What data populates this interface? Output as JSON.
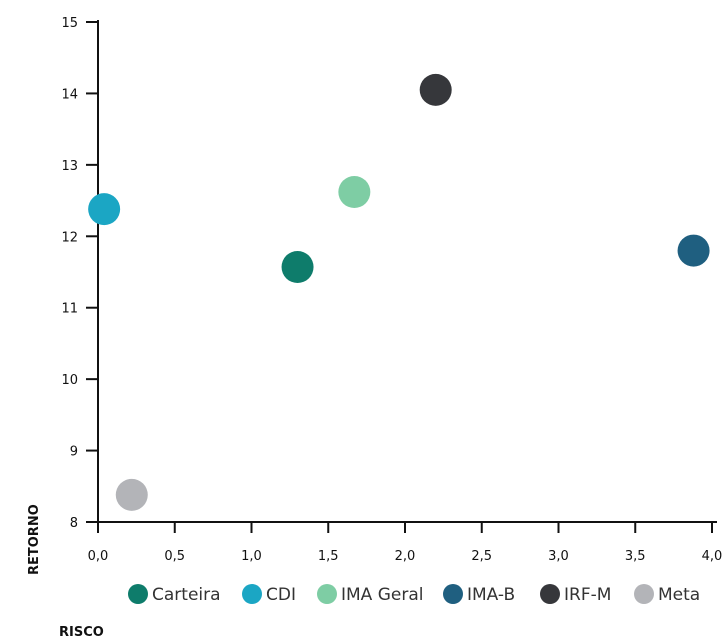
{
  "chart_data": {
    "type": "scatter",
    "xlabel": "RISCO",
    "ylabel": "RETORNO",
    "xlim": [
      0,
      4
    ],
    "ylim": [
      8,
      15
    ],
    "x_ticks": [
      {
        "value": 0,
        "label": "0,0"
      },
      {
        "value": 0.5,
        "label": "0,5"
      },
      {
        "value": 1,
        "label": "1,0"
      },
      {
        "value": 1.5,
        "label": "1,5"
      },
      {
        "value": 2,
        "label": "2,0"
      },
      {
        "value": 2.5,
        "label": "2,5"
      },
      {
        "value": 3,
        "label": "3,0"
      },
      {
        "value": 3.5,
        "label": "3,5"
      },
      {
        "value": 4,
        "label": "4,0"
      }
    ],
    "y_ticks": [
      {
        "value": 8,
        "label": "8"
      },
      {
        "value": 9,
        "label": "9"
      },
      {
        "value": 10,
        "label": "10"
      },
      {
        "value": 11,
        "label": "11"
      },
      {
        "value": 12,
        "label": "12"
      },
      {
        "value": 13,
        "label": "13"
      },
      {
        "value": 14,
        "label": "14"
      },
      {
        "value": 15,
        "label": "15"
      }
    ],
    "grid": false,
    "legend_position": "bottom",
    "series": [
      {
        "name": "Carteira",
        "color": "#0e7c6b",
        "x": 1.3,
        "y": 11.57
      },
      {
        "name": "CDI",
        "color": "#1ba6c4",
        "x": 0.04,
        "y": 12.38
      },
      {
        "name": "IMA Geral",
        "color": "#7ecda4",
        "x": 1.67,
        "y": 12.62
      },
      {
        "name": "IMA-B",
        "color": "#1f5f80",
        "x": 3.88,
        "y": 11.8
      },
      {
        "name": "IRF-M",
        "color": "#36373b",
        "x": 2.2,
        "y": 14.05
      },
      {
        "name": "Meta",
        "color": "#b3b4b8",
        "x": 0.22,
        "y": 8.38
      }
    ]
  }
}
